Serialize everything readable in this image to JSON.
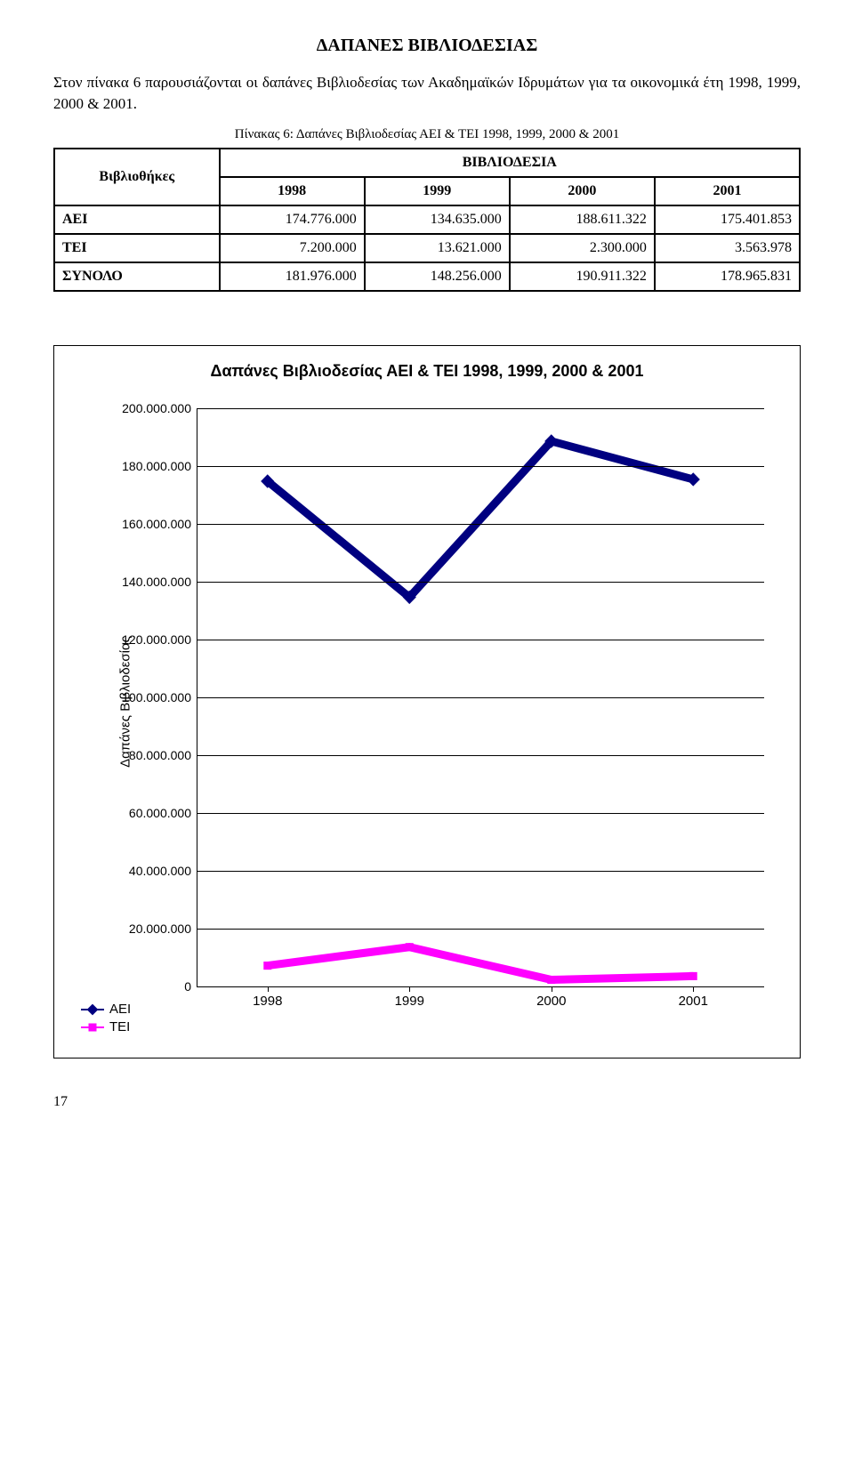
{
  "section_title": "ΔΑΠΑΝΕΣ ΒΙΒΛΙΟΔΕΣΙΑΣ",
  "paragraph_prefix": "Στον πίνακα 6 παρουσιάζονται οι δαπάνες Βιβλιοδεσίας των Ακαδημαϊκών Ιδρυμάτων για τα οικονομικά έτη 1998, 1999, 2000 & 2001.",
  "table_caption": "Πίνακας 6: Δαπάνες Βιβλιοδεσίας ΑΕΙ & ΤΕΙ 1998, 1999, 2000 & 2001",
  "table": {
    "row_header_label": "Βιβλιοθήκες",
    "super_header": "ΒΙΒΛΙΟΔΕΣΙΑ",
    "columns": [
      "1998",
      "1999",
      "2000",
      "2001"
    ],
    "rows": [
      {
        "label": "ΑΕΙ",
        "cells": [
          "174.776.000",
          "134.635.000",
          "188.611.322",
          "175.401.853"
        ]
      },
      {
        "label": "ΤΕΙ",
        "cells": [
          "7.200.000",
          "13.621.000",
          "2.300.000",
          "3.563.978"
        ]
      },
      {
        "label": "ΣΥΝΟΛΟ",
        "cells": [
          "181.976.000",
          "148.256.000",
          "190.911.322",
          "178.965.831"
        ]
      }
    ]
  },
  "chart": {
    "title": "Δαπάνες Βιβλιοδεσίας ΑΕΙ & ΤΕΙ 1998, 1999, 2000 & 2001",
    "y_axis_label": "Δαπάνες Βιβλιοδεσίας",
    "x_categories": [
      "1998",
      "1999",
      "2000",
      "2001"
    ],
    "y_min": 0,
    "y_max": 200000000,
    "y_tick_step": 20000000,
    "y_tick_labels": [
      "0",
      "20.000.000",
      "40.000.000",
      "60.000.000",
      "80.000.000",
      "100.000.000",
      "120.000.000",
      "140.000.000",
      "160.000.000",
      "180.000.000",
      "200.000.000"
    ],
    "background_color": "#ffffff",
    "grid_color": "#000000",
    "series": [
      {
        "name": "ΑΕΙ",
        "color": "#000080",
        "marker": "diamond",
        "marker_size": 12,
        "line_width": 3,
        "values": [
          174776000,
          134635000,
          188611322,
          175401853
        ]
      },
      {
        "name": "ΤΕΙ",
        "color": "#ff00ff",
        "marker": "square",
        "marker_size": 10,
        "line_width": 3,
        "values": [
          7200000,
          13621000,
          2300000,
          3563978
        ]
      }
    ]
  },
  "page_number": "17"
}
